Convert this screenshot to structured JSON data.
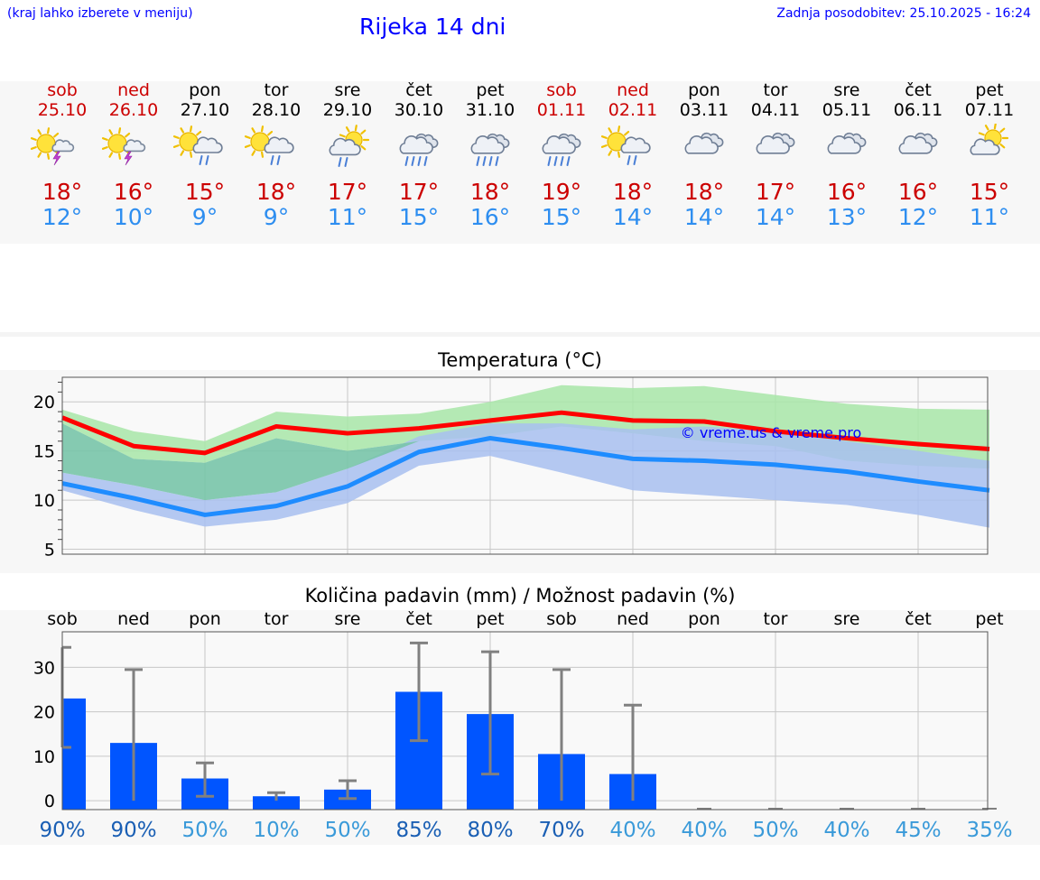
{
  "header": {
    "hint": "(kraj lahko izberete v meniju)",
    "title": "Rijeka 14 dni",
    "updated": "Zadnja posodobitev: 25.10.2025 - 16:24"
  },
  "colors": {
    "weekend": "#cc0000",
    "max": "#cc0000",
    "min": "#2e8ef0",
    "bar": "#0055ff",
    "link": "#0000ff"
  },
  "days": [
    {
      "name": "sob",
      "date": "25.10",
      "weekend": true,
      "icon": "sun-thunder-icon",
      "max": "18°",
      "min": "12°"
    },
    {
      "name": "ned",
      "date": "26.10",
      "weekend": true,
      "icon": "sun-thunder-icon",
      "max": "16°",
      "min": "10°"
    },
    {
      "name": "pon",
      "date": "27.10",
      "weekend": false,
      "icon": "sun-cloud-rain-icon",
      "max": "15°",
      "min": "9°"
    },
    {
      "name": "tor",
      "date": "28.10",
      "weekend": false,
      "icon": "sun-cloud-rain-icon",
      "max": "18°",
      "min": "9°"
    },
    {
      "name": "sre",
      "date": "29.10",
      "weekend": false,
      "icon": "cloud-sun-rain-icon",
      "max": "17°",
      "min": "11°"
    },
    {
      "name": "čet",
      "date": "30.10",
      "weekend": false,
      "icon": "cloud-heavy-rain-icon",
      "max": "17°",
      "min": "15°"
    },
    {
      "name": "pet",
      "date": "31.10",
      "weekend": false,
      "icon": "cloud-heavy-rain-icon",
      "max": "18°",
      "min": "16°"
    },
    {
      "name": "sob",
      "date": "01.11",
      "weekend": true,
      "icon": "cloud-heavy-rain-icon",
      "max": "19°",
      "min": "15°"
    },
    {
      "name": "ned",
      "date": "02.11",
      "weekend": true,
      "icon": "sun-cloud-rain-icon",
      "max": "18°",
      "min": "14°"
    },
    {
      "name": "pon",
      "date": "03.11",
      "weekend": false,
      "icon": "cloud-icon",
      "max": "18°",
      "min": "14°"
    },
    {
      "name": "tor",
      "date": "04.11",
      "weekend": false,
      "icon": "cloud-icon",
      "max": "17°",
      "min": "14°"
    },
    {
      "name": "sre",
      "date": "05.11",
      "weekend": false,
      "icon": "cloud-icon",
      "max": "16°",
      "min": "13°"
    },
    {
      "name": "čet",
      "date": "06.11",
      "weekend": false,
      "icon": "cloud-icon",
      "max": "16°",
      "min": "12°"
    },
    {
      "name": "pet",
      "date": "07.11",
      "weekend": false,
      "icon": "sun-cloud-icon",
      "max": "15°",
      "min": "11°"
    }
  ],
  "chart_data": [
    {
      "type": "line",
      "title": "Temperatura (°C)",
      "watermark": "© vreme.us & vreme.pro",
      "ylim": [
        4.5,
        22.5
      ],
      "yticks": [
        5,
        10,
        15,
        20
      ],
      "series": [
        {
          "name": "max",
          "color": "#ff0000",
          "values": [
            18.4,
            15.5,
            14.8,
            17.5,
            16.8,
            17.3,
            18.1,
            18.9,
            18.1,
            18.0,
            17.0,
            16.3,
            15.7,
            15.2
          ]
        },
        {
          "name": "max-range",
          "color": "#a8e6a8",
          "low": [
            17.8,
            14.2,
            13.8,
            16.3,
            15.0,
            16.0,
            16.5,
            17.5,
            16.8,
            16.0,
            15.5,
            14.0,
            13.5,
            13.2
          ],
          "high": [
            19.2,
            17.0,
            16.0,
            19.0,
            18.5,
            18.8,
            20.0,
            21.7,
            21.4,
            21.6,
            20.7,
            19.8,
            19.3,
            19.2
          ]
        },
        {
          "name": "min",
          "color": "#1e8cff",
          "values": [
            11.7,
            10.2,
            8.5,
            9.4,
            11.4,
            14.9,
            16.3,
            15.3,
            14.2,
            14.0,
            13.6,
            12.9,
            11.9,
            11.0
          ]
        },
        {
          "name": "min-range",
          "color": "#a8c0f0",
          "low": [
            11.0,
            9.0,
            7.3,
            8.0,
            9.7,
            13.5,
            14.5,
            12.8,
            11.0,
            10.5,
            10.0,
            9.5,
            8.5,
            7.2
          ],
          "high": [
            12.8,
            11.5,
            10.0,
            10.8,
            13.2,
            16.5,
            17.8,
            17.8,
            17.2,
            17.5,
            17.0,
            16.0,
            15.0,
            14.0
          ]
        }
      ]
    },
    {
      "type": "bar",
      "title": "Količina padavin (mm) / Možnost padavin (%)",
      "ylim": [
        -2,
        38
      ],
      "yticks": [
        0,
        10,
        20,
        30
      ],
      "categories": [
        "sob",
        "ned",
        "pon",
        "tor",
        "sre",
        "čet",
        "pet",
        "sob",
        "ned",
        "pon",
        "tor",
        "sre",
        "čet",
        "pet"
      ],
      "values": [
        23,
        13,
        5,
        1,
        2.5,
        24.5,
        19.5,
        10.5,
        6,
        0,
        0,
        0,
        0,
        0
      ],
      "err_low": [
        12,
        0,
        1,
        0,
        0.5,
        13.5,
        6,
        0,
        0,
        0,
        0,
        0,
        0,
        0
      ],
      "err_high": [
        34.5,
        29.5,
        8.5,
        1.8,
        4.5,
        35.5,
        33.5,
        29.5,
        21.5,
        0,
        0,
        0,
        0,
        0
      ],
      "probability": [
        "90%",
        "90%",
        "50%",
        "10%",
        "50%",
        "85%",
        "80%",
        "70%",
        "40%",
        "40%",
        "50%",
        "40%",
        "45%",
        "35%"
      ],
      "prob_colors": [
        "#1a5fb4",
        "#1a5fb4",
        "#3a9ad9",
        "#3a9ad9",
        "#3a9ad9",
        "#1a5fb4",
        "#1a5fb4",
        "#1a5fb4",
        "#3a9ad9",
        "#3a9ad9",
        "#3a9ad9",
        "#3a9ad9",
        "#3a9ad9",
        "#3a9ad9"
      ]
    }
  ]
}
